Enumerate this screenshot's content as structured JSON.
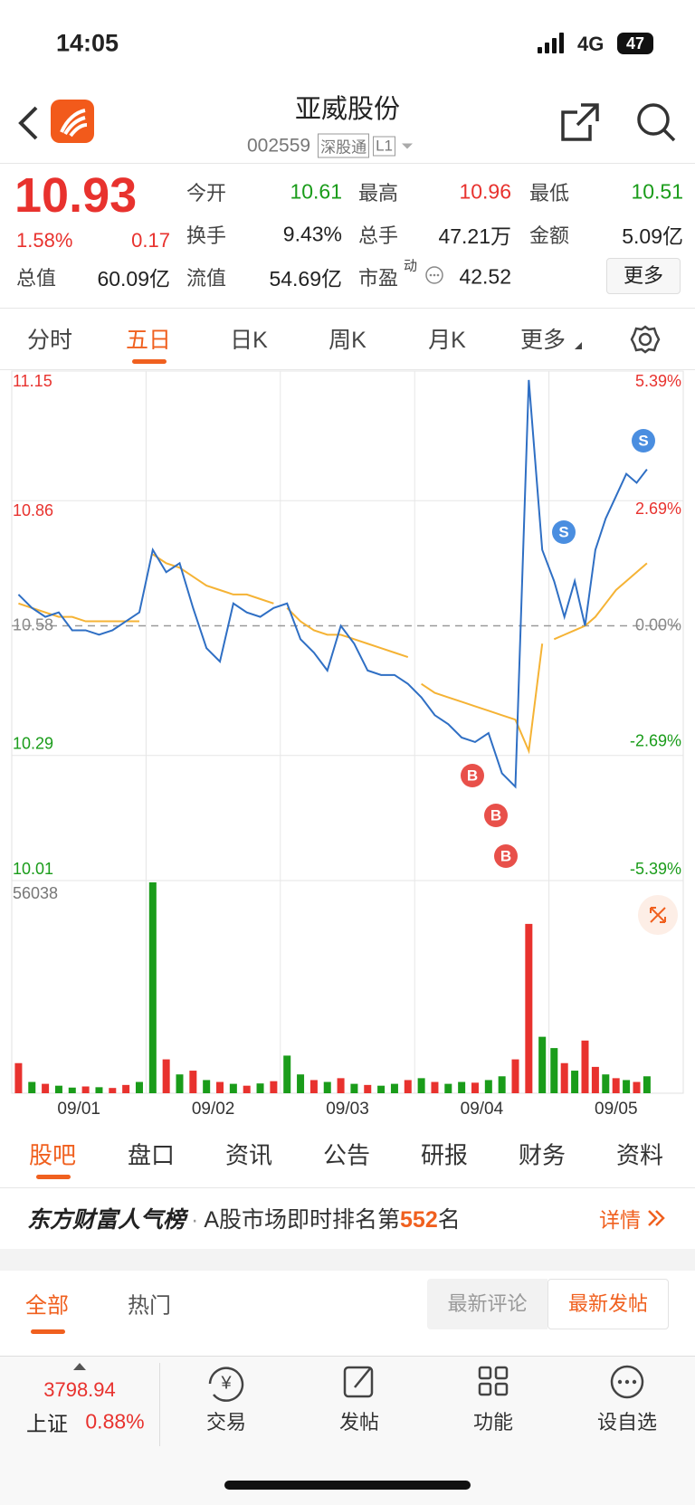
{
  "status_bar": {
    "time": "14:05",
    "network": "4G",
    "battery": "47"
  },
  "header": {
    "title": "亚威股份",
    "code": "002559",
    "badges": [
      "深股通",
      "L1"
    ]
  },
  "quote": {
    "price": "10.93",
    "change_pct": "1.58%",
    "change": "0.17",
    "fields": [
      {
        "label": "今开",
        "value": "10.61",
        "color": "green"
      },
      {
        "label": "最高",
        "value": "10.96",
        "color": "red"
      },
      {
        "label": "最低",
        "value": "10.51",
        "color": "green"
      },
      {
        "label": "换手",
        "value": "9.43%"
      },
      {
        "label": "总手",
        "value": "47.21万"
      },
      {
        "label": "金额",
        "value": "5.09亿"
      },
      {
        "label": "总值",
        "value": "60.09亿"
      },
      {
        "label": "流值",
        "value": "54.69亿"
      }
    ],
    "pe": {
      "label": "市盈",
      "tag": "动",
      "value": "42.52"
    },
    "more": "更多"
  },
  "period_tabs": [
    "分时",
    "五日",
    "日K",
    "周K",
    "月K",
    "更多"
  ],
  "chart_data": [
    {
      "type": "line",
      "ylim": [
        10.01,
        11.15
      ],
      "yticks": [
        11.15,
        10.86,
        10.58,
        10.29,
        10.01
      ],
      "y2lim": [
        -5.39,
        5.39
      ],
      "y2ticks": [
        {
          "value": 5.39,
          "label": "5.39%"
        },
        {
          "value": 2.69,
          "label": "2.69%"
        },
        {
          "value": 0,
          "label": "0.00%"
        },
        {
          "value": -2.69,
          "label": "-2.69%"
        },
        {
          "value": -5.39,
          "label": "-5.39%"
        }
      ],
      "grid": true,
      "series": [
        {
          "color": "#2f6fc4",
          "values": [
            10.65,
            10.62,
            10.6,
            10.61,
            10.57,
            10.57,
            10.56,
            10.57,
            10.59,
            10.61,
            10.75,
            10.7,
            10.72,
            10.62,
            10.53,
            10.5,
            10.63,
            10.61,
            10.6,
            10.62,
            10.63,
            10.55,
            10.52,
            10.48,
            10.58,
            10.54,
            10.48,
            10.47,
            10.47,
            10.45,
            10.42,
            10.38,
            10.36,
            10.33,
            10.32,
            10.34,
            10.25,
            10.22,
            11.13,
            10.75,
            10.68,
            10.6,
            10.68,
            10.58,
            10.75,
            10.82,
            10.87,
            10.92,
            10.9,
            10.93
          ]
        },
        {
          "color": "#f5b335",
          "values": [
            10.63,
            10.62,
            10.61,
            10.6,
            10.6,
            10.59,
            10.59,
            10.59,
            10.59,
            10.59,
            10.74,
            10.72,
            10.71,
            10.69,
            10.67,
            10.66,
            10.65,
            10.65,
            10.64,
            10.63,
            10.62,
            10.59,
            10.57,
            10.56,
            10.56,
            10.55,
            10.54,
            10.53,
            10.52,
            10.51,
            10.45,
            10.43,
            10.42,
            10.41,
            10.4,
            10.39,
            10.38,
            10.37,
            10.3,
            10.54,
            10.55,
            10.56,
            10.57,
            10.58,
            10.6,
            10.63,
            10.66,
            10.68,
            10.7,
            10.72
          ]
        }
      ],
      "markers": [
        "B",
        "B",
        "B",
        "S",
        "S"
      ]
    },
    {
      "type": "bar",
      "ylim": [
        0,
        56038
      ],
      "yticks": [
        56038
      ],
      "categories": [
        null,
        null,
        null,
        null,
        null,
        "09/01",
        null,
        null,
        null,
        null,
        null,
        null,
        null,
        null,
        null,
        "09/02",
        null,
        null,
        null,
        null,
        null,
        null,
        null,
        null,
        null,
        "09/03",
        null,
        null,
        null,
        null,
        null,
        null,
        null,
        null,
        null,
        "09/04",
        null,
        null,
        null,
        null,
        null,
        null,
        null,
        null,
        null,
        "09/05",
        null,
        null,
        null,
        null
      ],
      "values": [
        8000,
        3000,
        2500,
        2000,
        1500,
        1800,
        1600,
        1400,
        2200,
        3000,
        56038,
        9000,
        5000,
        6000,
        3500,
        3000,
        2500,
        2000,
        2600,
        3200,
        10000,
        5000,
        3500,
        3000,
        4000,
        2500,
        2200,
        2000,
        2500,
        3500,
        4000,
        3000,
        2500,
        3000,
        2800,
        3500,
        4500,
        9000,
        45000,
        15000,
        12000,
        8000,
        6000,
        14000,
        7000,
        5000,
        4000,
        3500,
        3000,
        4500
      ],
      "colors": [
        "#e8322e",
        "#1a9c1a",
        "#e8322e",
        "#1a9c1a",
        "#1a9c1a",
        "#e8322e",
        "#1a9c1a",
        "#e8322e",
        "#e8322e",
        "#1a9c1a",
        "#1a9c1a",
        "#e8322e",
        "#1a9c1a",
        "#e8322e",
        "#1a9c1a",
        "#e8322e",
        "#1a9c1a",
        "#e8322e",
        "#1a9c1a",
        "#e8322e",
        "#1a9c1a",
        "#1a9c1a",
        "#e8322e",
        "#1a9c1a",
        "#e8322e",
        "#1a9c1a",
        "#e8322e",
        "#1a9c1a",
        "#1a9c1a",
        "#e8322e",
        "#1a9c1a",
        "#e8322e",
        "#1a9c1a",
        "#1a9c1a",
        "#e8322e",
        "#1a9c1a",
        "#1a9c1a",
        "#e8322e",
        "#e8322e",
        "#1a9c1a",
        "#1a9c1a",
        "#e8322e",
        "#1a9c1a",
        "#e8322e",
        "#e8322e",
        "#1a9c1a",
        "#e8322e",
        "#1a9c1a",
        "#e8322e",
        "#1a9c1a"
      ]
    }
  ],
  "section_tabs": [
    "股吧",
    "盘口",
    "资讯",
    "公告",
    "研报",
    "财务",
    "资料"
  ],
  "popularity": {
    "brand": "东方财富人气榜",
    "text": "A股市场即时排名第",
    "rank": "552",
    "suffix": "名",
    "link": "详情"
  },
  "feed_tabs": [
    "全部",
    "热门"
  ],
  "feed_sort": [
    "最新评论",
    "最新发帖"
  ],
  "bottom_bar": {
    "index_value": "3798.94",
    "index_name": "上证",
    "index_change": "0.88%",
    "actions": [
      "交易",
      "发帖",
      "功能",
      "设自选"
    ]
  }
}
